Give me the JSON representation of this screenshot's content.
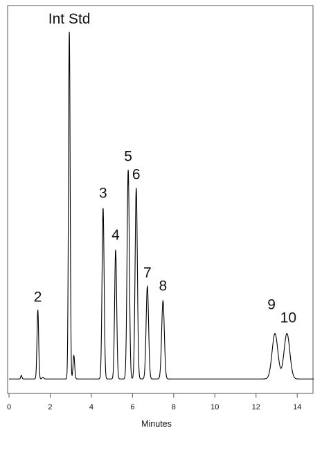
{
  "chart_data": {
    "type": "line",
    "title": "",
    "xlabel": "Minutes",
    "ylabel": "",
    "xlim": [
      0,
      14.8
    ],
    "ylim": [
      0,
      100
    ],
    "xticks": [
      0,
      2,
      4,
      6,
      8,
      10,
      12,
      14
    ],
    "grid": false,
    "legend": "none",
    "baseline": 1.5,
    "line_color": "#000000",
    "peaks": [
      {
        "label": "",
        "t": 0.6,
        "height": 1.0,
        "width": 0.03
      },
      {
        "label": "",
        "t": 1.65,
        "height": 0.5,
        "width": 0.04
      },
      {
        "label": "2",
        "t": 1.4,
        "height": 19.0,
        "width": 0.04
      },
      {
        "label": "Int Std",
        "t": 2.93,
        "height": 95.5,
        "width": 0.04
      },
      {
        "label": "",
        "t": 3.15,
        "height": 6.5,
        "width": 0.04
      },
      {
        "label": "3",
        "t": 4.57,
        "height": 47.0,
        "width": 0.05
      },
      {
        "label": "4",
        "t": 5.18,
        "height": 35.5,
        "width": 0.05
      },
      {
        "label": "5",
        "t": 5.79,
        "height": 57.5,
        "width": 0.055
      },
      {
        "label": "6",
        "t": 6.18,
        "height": 52.5,
        "width": 0.055
      },
      {
        "label": "7",
        "t": 6.72,
        "height": 25.5,
        "width": 0.06
      },
      {
        "label": "8",
        "t": 7.48,
        "height": 21.5,
        "width": 0.065
      },
      {
        "label": "9",
        "t": 12.92,
        "height": 12.5,
        "width": 0.14
      },
      {
        "label": "10",
        "t": 13.5,
        "height": 12.5,
        "width": 0.14
      }
    ]
  }
}
